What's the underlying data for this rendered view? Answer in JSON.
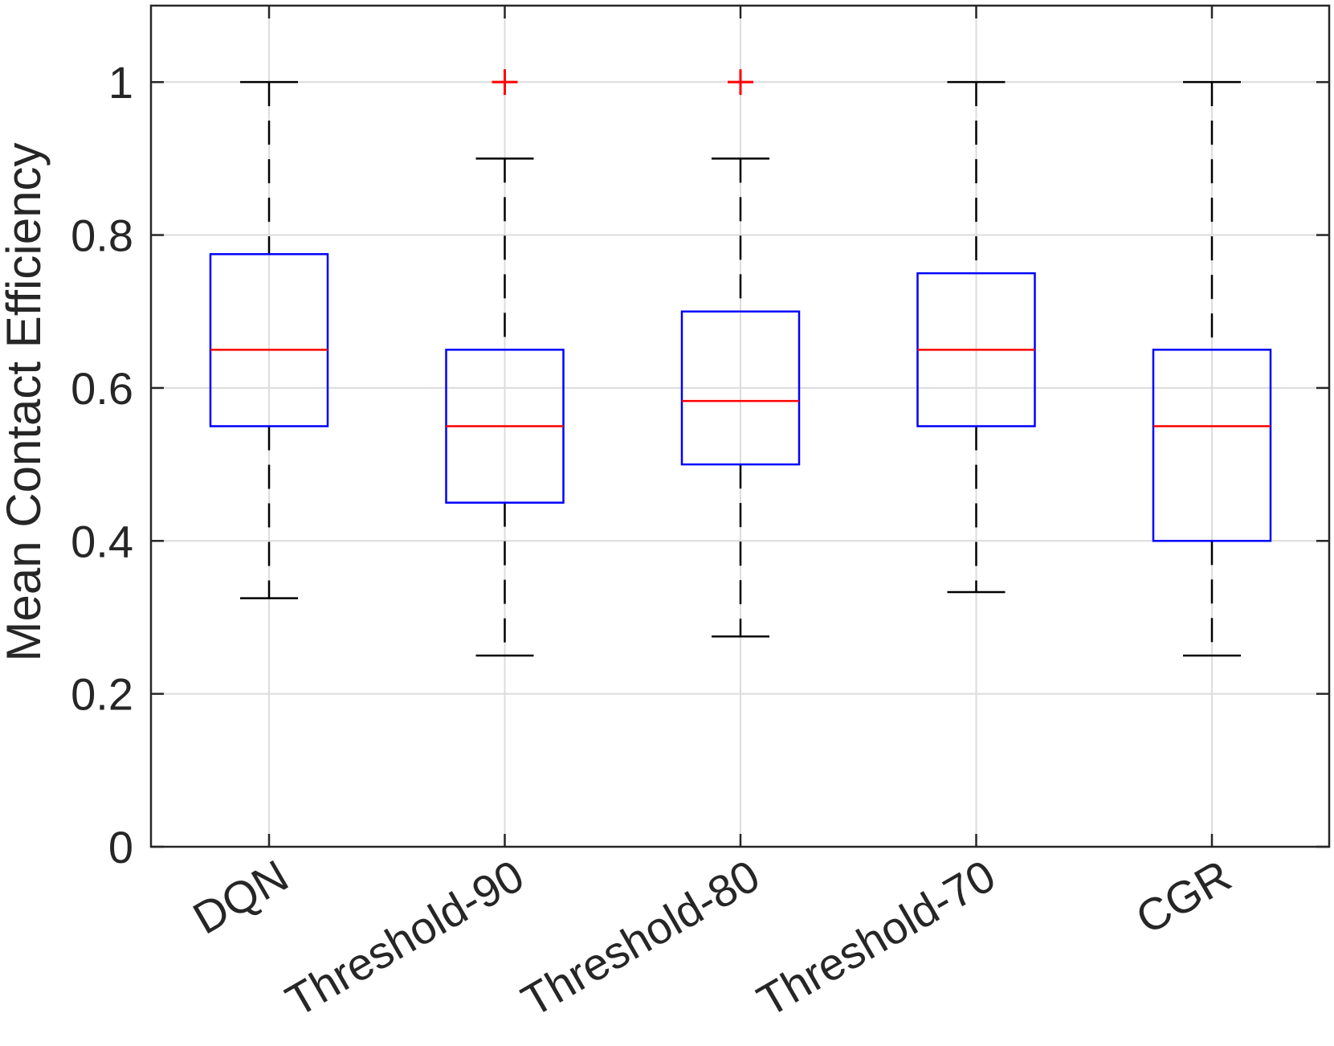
{
  "chart_data": {
    "type": "box",
    "title": "",
    "xlabel": "",
    "ylabel": "Mean Contact Efficiency",
    "ylim": [
      0,
      1.1
    ],
    "yticks": [
      0,
      0.2,
      0.4,
      0.6,
      0.8,
      1
    ],
    "ytick_labels": [
      "0",
      "0.2",
      "0.4",
      "0.6",
      "0.8",
      "1"
    ],
    "grid": true,
    "categories": [
      "DQN",
      "Threshold-90",
      "Threshold-80",
      "Threshold-70",
      "CGR"
    ],
    "boxes": [
      {
        "whisker_low": 0.325,
        "q1": 0.55,
        "median": 0.65,
        "q3": 0.775,
        "whisker_high": 1.0,
        "outliers": []
      },
      {
        "whisker_low": 0.25,
        "q1": 0.45,
        "median": 0.55,
        "q3": 0.65,
        "whisker_high": 0.9,
        "outliers": [
          1.0
        ]
      },
      {
        "whisker_low": 0.275,
        "q1": 0.5,
        "median": 0.583,
        "q3": 0.7,
        "whisker_high": 0.9,
        "outliers": [
          1.0
        ]
      },
      {
        "whisker_low": 0.333,
        "q1": 0.55,
        "median": 0.65,
        "q3": 0.75,
        "whisker_high": 1.0,
        "outliers": []
      },
      {
        "whisker_low": 0.25,
        "q1": 0.4,
        "median": 0.55,
        "q3": 0.65,
        "whisker_high": 1.0,
        "outliers": []
      }
    ],
    "colors": {
      "box": "#0000ff",
      "median": "#ff0000",
      "whisker": "#000000",
      "outlier": "#ff0000",
      "grid": "#dcdcdc",
      "axis": "#262626"
    }
  }
}
